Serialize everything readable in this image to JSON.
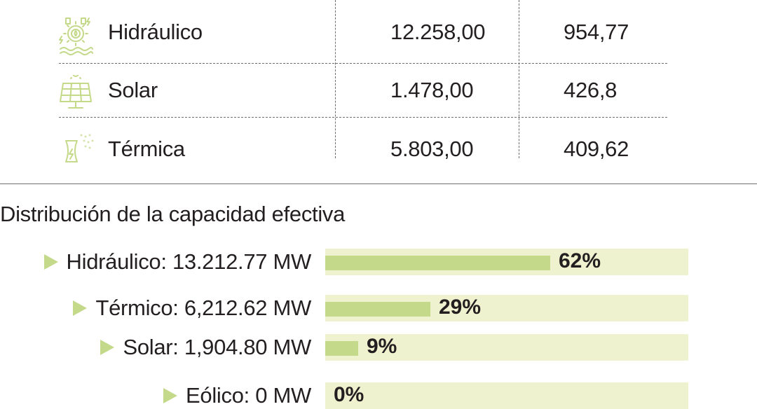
{
  "table": {
    "rows": [
      {
        "name": "Hidráulico",
        "value1": "12.258,00",
        "value2": "954,77",
        "icon": "hydro-icon"
      },
      {
        "name": "Solar",
        "value1": "1.478,00",
        "value2": "426,8",
        "icon": "solar-panel-icon"
      },
      {
        "name": "Térmica",
        "value1": "5.803,00",
        "value2": "409,62",
        "icon": "thermal-plant-icon"
      }
    ]
  },
  "chart_title": "Distribución de la capacidad efectiva",
  "chart_data": {
    "type": "bar",
    "orientation": "horizontal",
    "title": "Distribución de la capacidad efectiva",
    "categories": [
      "Hidráulico: 13.212.77 MW",
      "Térmico: 6,212.62 MW",
      "Solar: 1,904.80 MW",
      "Eólico: 0 MW"
    ],
    "values": [
      62,
      29,
      9,
      0
    ],
    "value_labels": [
      "62%",
      "29%",
      "9%",
      "0%"
    ],
    "xlim": [
      0,
      100
    ],
    "unit": "%",
    "grid": false,
    "legend": "none",
    "colors": {
      "fill": "#c4d98a",
      "track": "#eef2cf",
      "marker": "#c4d98a"
    }
  }
}
